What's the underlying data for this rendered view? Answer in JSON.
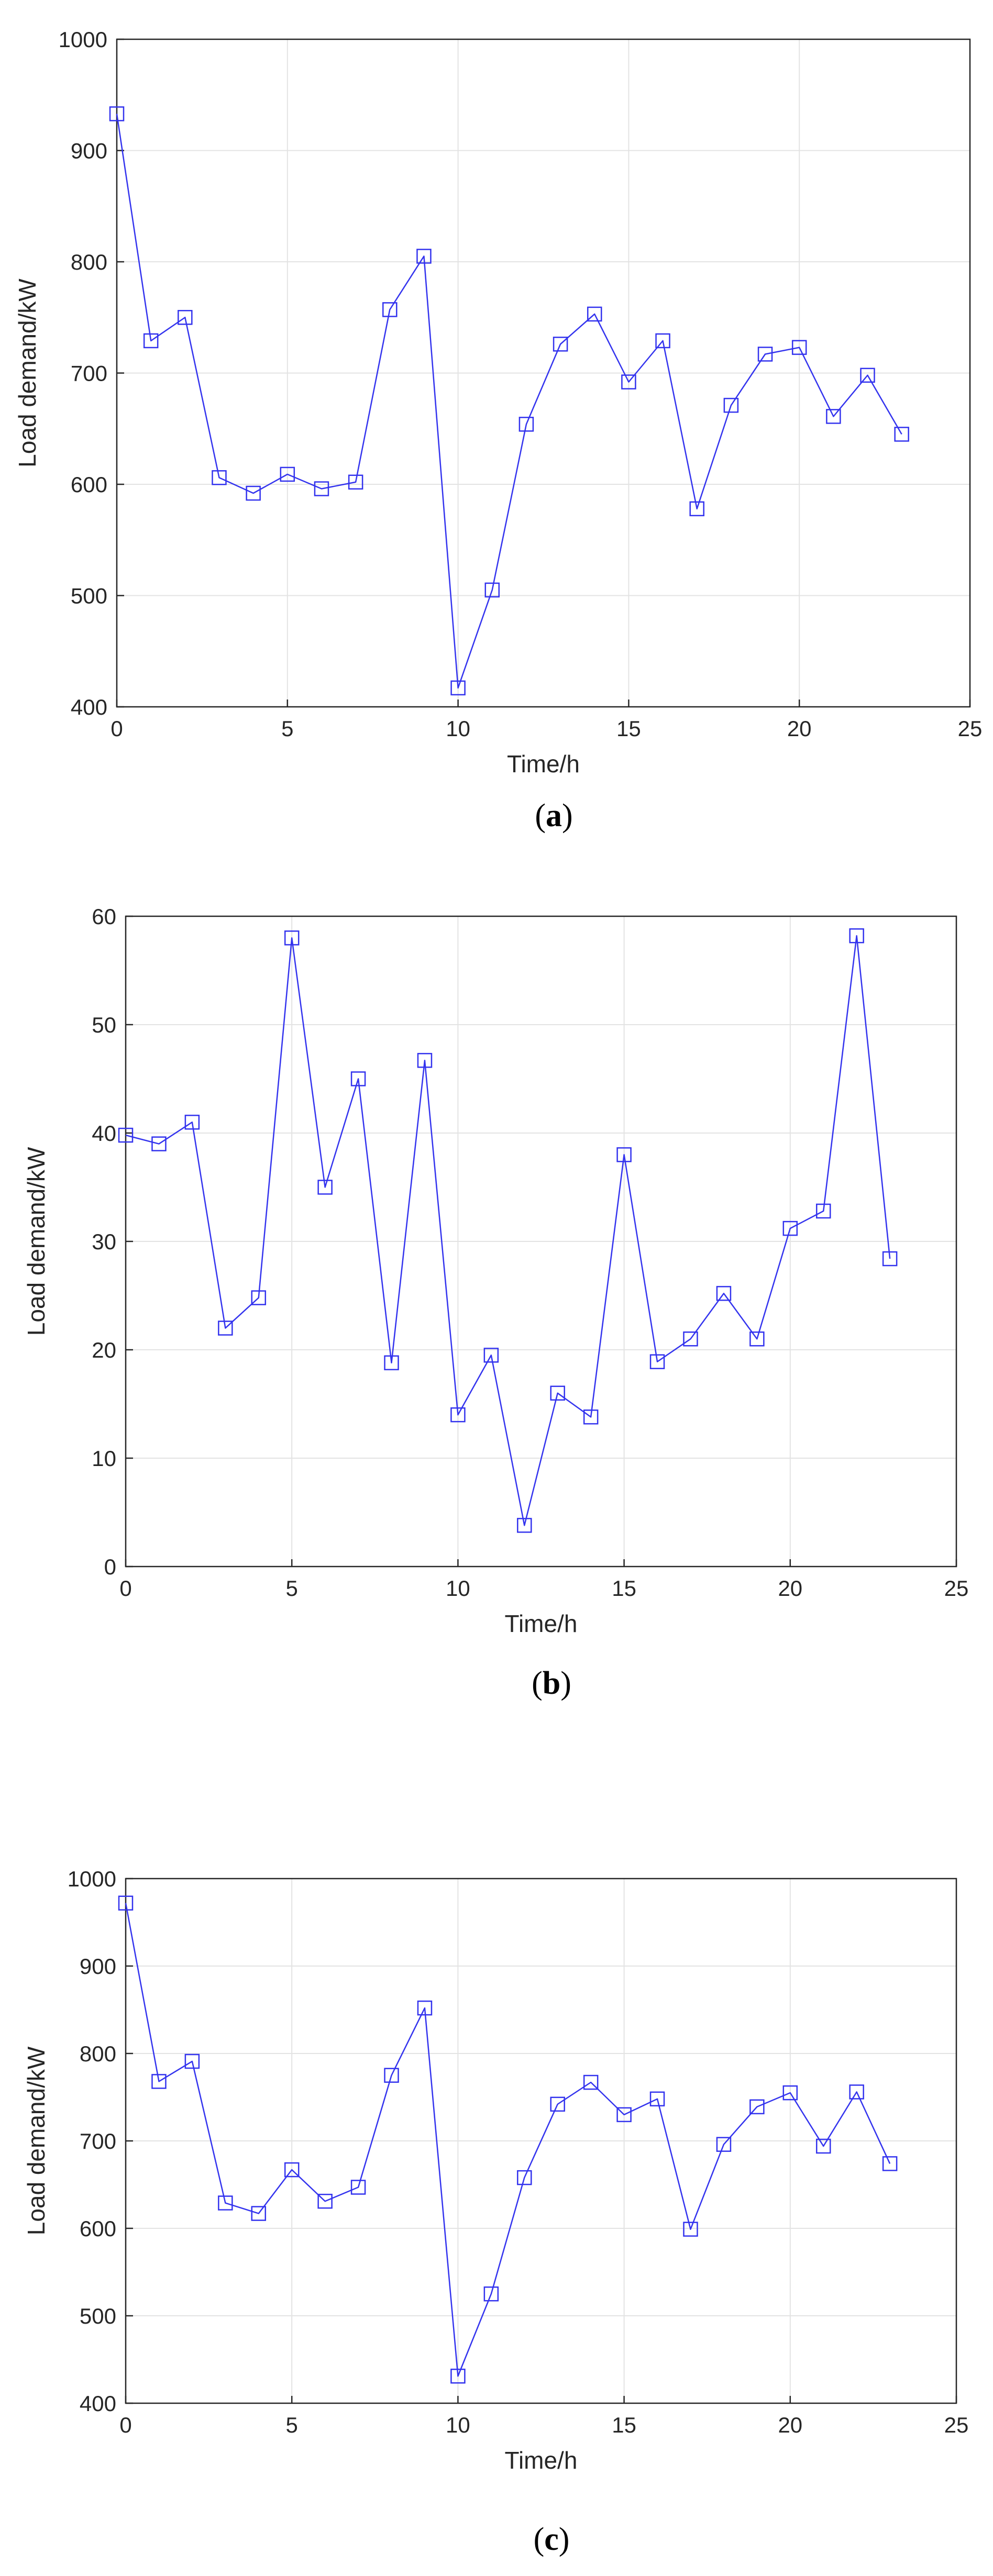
{
  "figure": {
    "panels": [
      {
        "caption_open": "(",
        "caption_letter": "a",
        "caption_close": ")"
      },
      {
        "caption_open": "(",
        "caption_letter": "b",
        "caption_close": ")"
      },
      {
        "caption_open": "(",
        "caption_letter": "c",
        "caption_close": ")"
      }
    ]
  },
  "colors": {
    "series": "#3333ee",
    "grid": "#e3e3e3",
    "axis": "#262626"
  },
  "chart_data": [
    {
      "type": "line",
      "marker": "square",
      "grid": true,
      "xlabel": "Time/h",
      "ylabel": "Load demand/kW",
      "xlim": [
        0,
        25
      ],
      "ylim": [
        400,
        1000
      ],
      "xticks": [
        0,
        5,
        10,
        15,
        20,
        25
      ],
      "yticks": [
        400,
        500,
        600,
        700,
        800,
        900,
        1000
      ],
      "series": [
        {
          "x": [
            0,
            1,
            2,
            3,
            4,
            5,
            6,
            7,
            8,
            9,
            10,
            11,
            12,
            13,
            14,
            15,
            16,
            17,
            18,
            19,
            20,
            21,
            22,
            23
          ],
          "values": [
            933,
            729,
            750,
            606,
            592,
            609,
            596,
            602,
            757,
            805,
            417,
            505,
            654,
            726,
            753,
            692,
            729,
            578,
            671,
            717,
            723,
            661,
            698,
            645
          ]
        }
      ]
    },
    {
      "type": "line",
      "marker": "square",
      "grid": true,
      "xlabel": "Time/h",
      "ylabel": "Load demand/kW",
      "xlim": [
        0,
        25
      ],
      "ylim": [
        0,
        60
      ],
      "xticks": [
        0,
        5,
        10,
        15,
        20,
        25
      ],
      "yticks": [
        0,
        10,
        20,
        30,
        40,
        50,
        60
      ],
      "series": [
        {
          "x": [
            0,
            1,
            2,
            3,
            4,
            5,
            6,
            7,
            8,
            9,
            10,
            11,
            12,
            13,
            14,
            15,
            16,
            17,
            18,
            19,
            20,
            21,
            22,
            23
          ],
          "values": [
            39.8,
            39.0,
            41.0,
            22.0,
            24.8,
            58.0,
            35.0,
            45.0,
            18.8,
            46.7,
            14.0,
            19.5,
            3.8,
            16.0,
            13.8,
            38.0,
            18.9,
            21.0,
            25.2,
            21.0,
            31.2,
            32.8,
            58.2,
            28.4
          ]
        }
      ]
    },
    {
      "type": "line",
      "marker": "square",
      "grid": true,
      "xlabel": "Time/h",
      "ylabel": "Load demand/kW",
      "xlim": [
        0,
        25
      ],
      "ylim": [
        400,
        1000
      ],
      "xticks": [
        0,
        5,
        10,
        15,
        20,
        25
      ],
      "yticks": [
        400,
        500,
        600,
        700,
        800,
        900,
        1000
      ],
      "series": [
        {
          "x": [
            0,
            1,
            2,
            3,
            4,
            5,
            6,
            7,
            8,
            9,
            10,
            11,
            12,
            13,
            14,
            15,
            16,
            17,
            18,
            19,
            20,
            21,
            22,
            23
          ],
          "values": [
            972,
            768,
            791,
            629,
            617,
            667,
            631,
            647,
            775,
            852,
            431,
            525,
            658,
            742,
            767,
            730,
            748,
            599,
            696,
            739,
            755,
            694,
            756,
            674
          ]
        }
      ]
    }
  ]
}
